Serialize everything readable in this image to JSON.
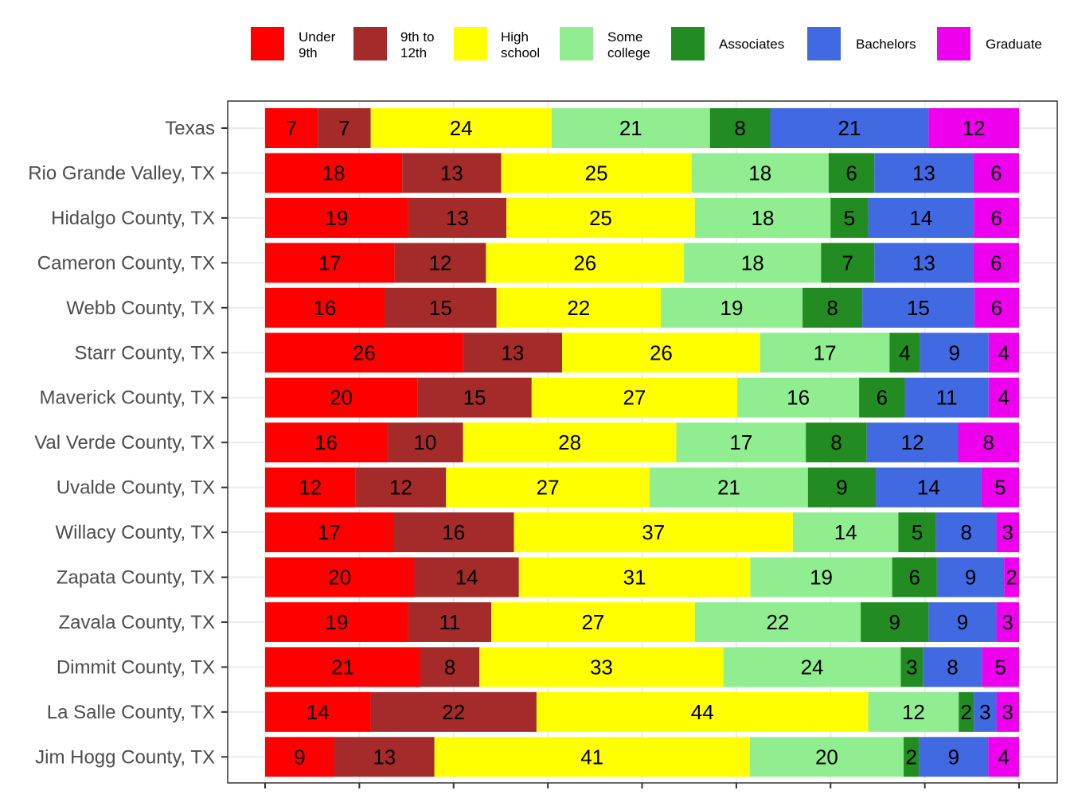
{
  "chart_data": {
    "type": "bar",
    "orientation": "horizontal",
    "stacked": true,
    "normalized": true,
    "xlabel": "",
    "ylabel": "",
    "grid": true,
    "legend_position": "top",
    "legend": [
      {
        "name": "Under\n9th",
        "color": "#ff0000"
      },
      {
        "name": "9th to\n12th",
        "color": "#a52a2a"
      },
      {
        "name": "High\nschool",
        "color": "#ffff00"
      },
      {
        "name": "Some\ncollege",
        "color": "#90ee90"
      },
      {
        "name": "Associates",
        "color": "#228b22"
      },
      {
        "name": "Bachelors",
        "color": "#4169e1"
      },
      {
        "name": "Graduate",
        "color": "#ee00ee"
      }
    ],
    "categories": [
      "Texas",
      "Rio Grande Valley, TX",
      "Hidalgo County, TX",
      "Cameron County, TX",
      "Webb County, TX",
      "Starr County, TX",
      "Maverick County, TX",
      "Val Verde County, TX",
      "Uvalde County, TX",
      "Willacy County, TX",
      "Zapata County, TX",
      "Zavala County, TX",
      "Dimmit County, TX",
      "La Salle County, TX",
      "Jim Hogg County, TX"
    ],
    "series": [
      {
        "name": "Under 9th",
        "values": [
          7,
          18,
          19,
          17,
          16,
          26,
          20,
          16,
          12,
          17,
          20,
          19,
          21,
          14,
          9
        ]
      },
      {
        "name": "9th to 12th",
        "values": [
          7,
          13,
          13,
          12,
          15,
          13,
          15,
          10,
          12,
          16,
          14,
          11,
          8,
          22,
          13
        ]
      },
      {
        "name": "High school",
        "values": [
          24,
          25,
          25,
          26,
          22,
          26,
          27,
          28,
          27,
          37,
          31,
          27,
          33,
          44,
          41
        ]
      },
      {
        "name": "Some college",
        "values": [
          21,
          18,
          18,
          18,
          19,
          17,
          16,
          17,
          21,
          14,
          19,
          22,
          24,
          12,
          20
        ]
      },
      {
        "name": "Associates",
        "values": [
          8,
          6,
          5,
          7,
          8,
          4,
          6,
          8,
          9,
          5,
          6,
          9,
          3,
          2,
          2
        ]
      },
      {
        "name": "Bachelors",
        "values": [
          21,
          13,
          14,
          13,
          15,
          9,
          11,
          12,
          14,
          8,
          9,
          9,
          8,
          3,
          9
        ]
      },
      {
        "name": "Graduate",
        "values": [
          12,
          6,
          6,
          6,
          6,
          4,
          4,
          8,
          5,
          3,
          2,
          3,
          5,
          3,
          4
        ]
      }
    ]
  }
}
